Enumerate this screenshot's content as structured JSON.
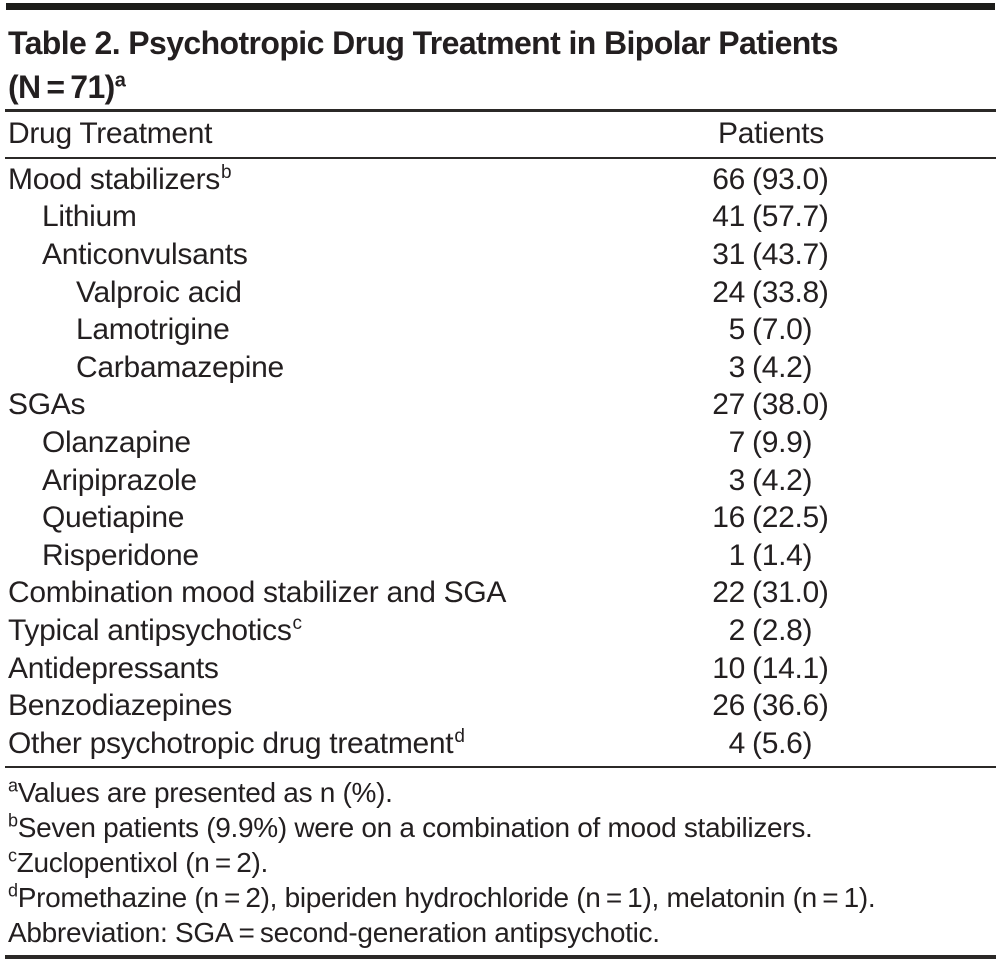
{
  "table": {
    "title_line1": "Table 2. Psychotropic Drug Treatment in Bipolar Patients",
    "title_line2": "(N = 71)",
    "title_sup": "a",
    "columns": [
      "Drug Treatment",
      "Patients"
    ],
    "rows": [
      {
        "label": "Mood stabilizers",
        "sup": "b",
        "indent": 0,
        "n": "66",
        "pct": "(93.0)"
      },
      {
        "label": "Lithium",
        "sup": "",
        "indent": 1,
        "n": "41",
        "pct": "(57.7)"
      },
      {
        "label": "Anticonvulsants",
        "sup": "",
        "indent": 1,
        "n": "31",
        "pct": "(43.7)"
      },
      {
        "label": "Valproic acid",
        "sup": "",
        "indent": 2,
        "n": "24",
        "pct": "(33.8)"
      },
      {
        "label": "Lamotrigine",
        "sup": "",
        "indent": 2,
        "n": "5",
        "pct": "(7.0)"
      },
      {
        "label": "Carbamazepine",
        "sup": "",
        "indent": 2,
        "n": "3",
        "pct": "(4.2)"
      },
      {
        "label": "SGAs",
        "sup": "",
        "indent": 0,
        "n": "27",
        "pct": "(38.0)"
      },
      {
        "label": "Olanzapine",
        "sup": "",
        "indent": 1,
        "n": "7",
        "pct": "(9.9)"
      },
      {
        "label": "Aripiprazole",
        "sup": "",
        "indent": 1,
        "n": "3",
        "pct": "(4.2)"
      },
      {
        "label": "Quetiapine",
        "sup": "",
        "indent": 1,
        "n": "16",
        "pct": "(22.5)"
      },
      {
        "label": "Risperidone",
        "sup": "",
        "indent": 1,
        "n": "1",
        "pct": "(1.4)"
      },
      {
        "label": "Combination mood stabilizer and SGA",
        "sup": "",
        "indent": 0,
        "n": "22",
        "pct": "(31.0)"
      },
      {
        "label": "Typical antipsychotics",
        "sup": "c",
        "indent": 0,
        "n": "2",
        "pct": "(2.8)"
      },
      {
        "label": "Antidepressants",
        "sup": "",
        "indent": 0,
        "n": "10",
        "pct": "(14.1)"
      },
      {
        "label": "Benzodiazepines",
        "sup": "",
        "indent": 0,
        "n": "26",
        "pct": "(36.6)"
      },
      {
        "label": "Other psychotropic drug treatment",
        "sup": "d",
        "indent": 0,
        "n": "4",
        "pct": "(5.6)"
      }
    ],
    "footnotes": [
      {
        "sup": "a",
        "text": "Values are presented as n (%)."
      },
      {
        "sup": "b",
        "text": "Seven patients (9.9%) were on a combination of mood stabilizers."
      },
      {
        "sup": "c",
        "text": "Zuclopentixol (n = 2)."
      },
      {
        "sup": "d",
        "text": "Promethazine (n = 2), biperiden hydrochloride (n = 1), melatonin (n = 1)."
      },
      {
        "sup": "",
        "text": "Abbreviation: SGA = second-generation antipsychotic."
      }
    ]
  }
}
